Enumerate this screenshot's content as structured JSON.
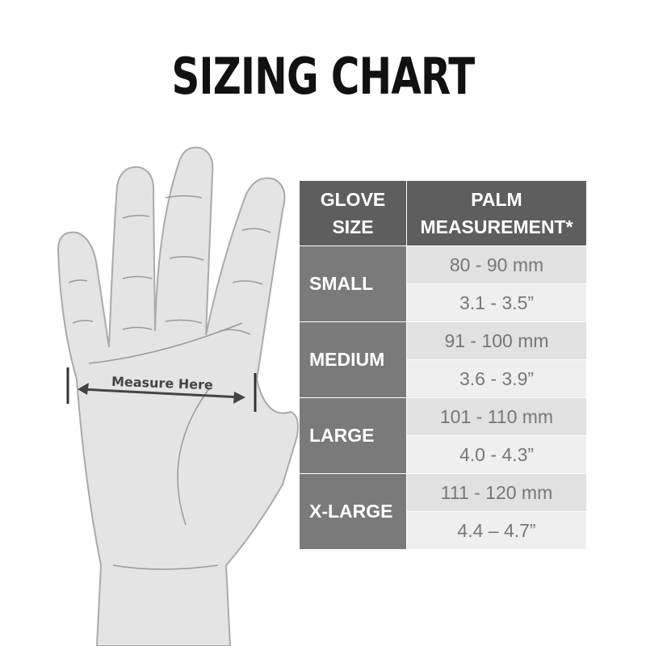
{
  "title": "SIZING CHART",
  "hand": {
    "label": "Measure Here"
  },
  "table": {
    "headers": [
      "GLOVE\nSIZE",
      "PALM\nMEASUREMENT*"
    ],
    "rows": [
      {
        "size": "SMALL",
        "mm": "80 - 90 mm",
        "inches": "3.1 - 3.5”"
      },
      {
        "size": "MEDIUM",
        "mm": "91 - 100 mm",
        "inches": "3.6 - 3.9”"
      },
      {
        "size": "LARGE",
        "mm": "101 - 110 mm",
        "inches": "4.0 - 4.3”"
      },
      {
        "size": "X-LARGE",
        "mm": "111 - 120 mm",
        "inches": "4.4 – 4.7”"
      }
    ]
  },
  "colors": {
    "header": "#5e5e5e",
    "size_cell": "#7a7a7a",
    "mm_cell": "#e1e1e1",
    "inch_cell": "#efefef",
    "hand": "#e4e4e4"
  }
}
